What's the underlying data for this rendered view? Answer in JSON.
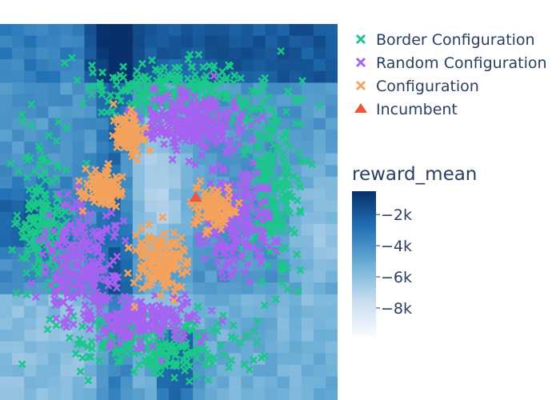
{
  "chart_data": {
    "type": "scatter",
    "title": "",
    "xlabel": "",
    "ylabel": "",
    "background": {
      "type": "heatmap",
      "colorscale": "Blues (reversed)",
      "low_color": "#f7fbff",
      "high_color": "#08306b",
      "zrange": [
        -9800,
        -500
      ]
    },
    "colorbar": {
      "title": "reward_mean",
      "ticks": [
        -2000,
        -4000,
        -6000,
        -8000
      ],
      "tick_labels": [
        "−2k",
        "−4k",
        "−6k",
        "−8k"
      ]
    },
    "legend": {
      "position": "top-right",
      "entries": [
        {
          "name": "Border Configuration",
          "color": "#1cc78a",
          "symbol": "x"
        },
        {
          "name": "Random Configuration",
          "color": "#a662f0",
          "symbol": "x"
        },
        {
          "name": "Configuration",
          "color": "#f5a25d",
          "symbol": "x"
        },
        {
          "name": "Incumbent",
          "color": "#ef553b",
          "symbol": "triangle-up"
        }
      ]
    },
    "axes": {
      "x_range": [
        0,
        1
      ],
      "y_range": [
        0,
        1
      ],
      "visible": false
    },
    "series": [
      {
        "name": "Border Configuration",
        "clusters": [
          {
            "x": 0.52,
            "y": 0.82,
            "rx": 0.3,
            "ry": 0.09,
            "n": 260
          },
          {
            "x": 0.8,
            "y": 0.55,
            "rx": 0.11,
            "ry": 0.25,
            "n": 200
          },
          {
            "x": 0.13,
            "y": 0.47,
            "rx": 0.09,
            "ry": 0.24,
            "n": 200
          },
          {
            "x": 0.48,
            "y": 0.14,
            "rx": 0.28,
            "ry": 0.09,
            "n": 220
          }
        ]
      },
      {
        "name": "Random Configuration",
        "clusters": [
          {
            "x": 0.57,
            "y": 0.74,
            "rx": 0.17,
            "ry": 0.09,
            "n": 260
          },
          {
            "x": 0.7,
            "y": 0.48,
            "rx": 0.11,
            "ry": 0.15,
            "n": 200
          },
          {
            "x": 0.24,
            "y": 0.37,
            "rx": 0.12,
            "ry": 0.18,
            "n": 240
          },
          {
            "x": 0.43,
            "y": 0.21,
            "rx": 0.2,
            "ry": 0.07,
            "n": 180
          }
        ]
      },
      {
        "name": "Configuration",
        "clusters": [
          {
            "x": 0.38,
            "y": 0.71,
            "rx": 0.05,
            "ry": 0.06,
            "n": 90
          },
          {
            "x": 0.3,
            "y": 0.56,
            "rx": 0.07,
            "ry": 0.05,
            "n": 120
          },
          {
            "x": 0.63,
            "y": 0.51,
            "rx": 0.07,
            "ry": 0.06,
            "n": 110
          },
          {
            "x": 0.48,
            "y": 0.37,
            "rx": 0.09,
            "ry": 0.09,
            "n": 150
          }
        ]
      },
      {
        "name": "Incumbent",
        "x": [
          0.58
        ],
        "y": [
          0.54
        ]
      }
    ]
  }
}
